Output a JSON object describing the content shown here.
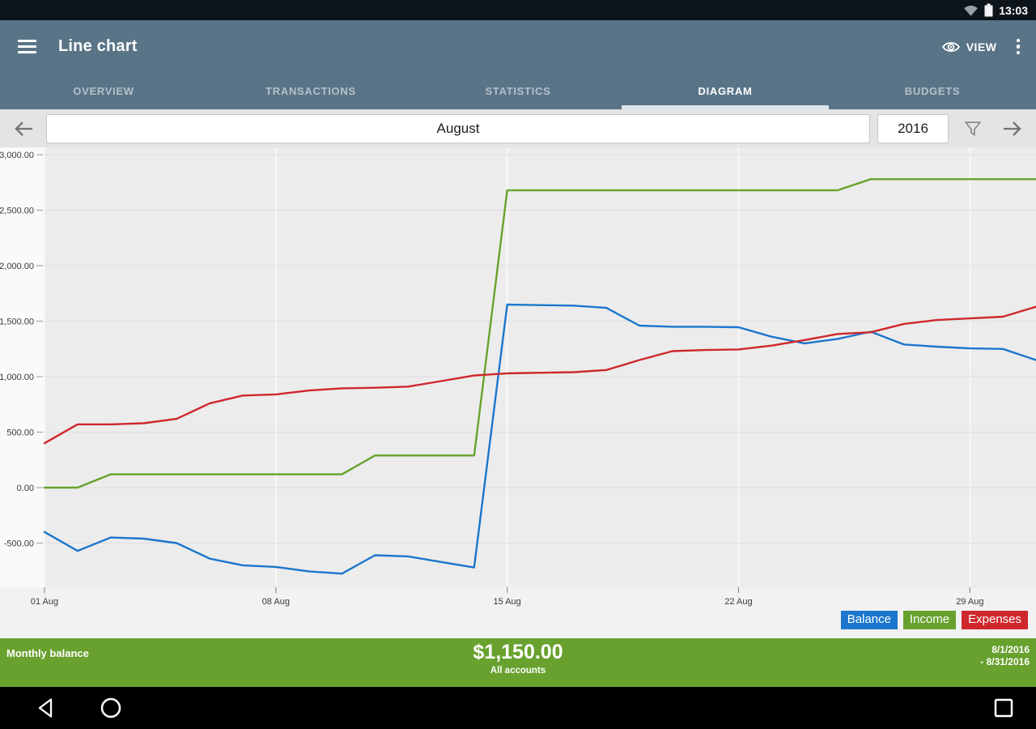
{
  "status_bar": {
    "time": "13:03"
  },
  "app_bar": {
    "title": "Line chart",
    "view_label": "VIEW"
  },
  "tabs": [
    {
      "label": "OVERVIEW",
      "active": false
    },
    {
      "label": "TRANSACTIONS",
      "active": false
    },
    {
      "label": "STATISTICS",
      "active": false
    },
    {
      "label": "DIAGRAM",
      "active": true
    },
    {
      "label": "BUDGETS",
      "active": false
    }
  ],
  "date_bar": {
    "month": "August",
    "year": "2016"
  },
  "chart_data": {
    "type": "line",
    "x_unit": "day of August 2016",
    "day_range": [
      1,
      31
    ],
    "x_ticks": {
      "days": [
        1,
        8,
        15,
        22,
        29
      ],
      "labels": [
        "01 Aug",
        "08 Aug",
        "15 Aug",
        "22 Aug",
        "29 Aug"
      ]
    },
    "y_ticks": {
      "values": [
        3000,
        2500,
        2000,
        1500,
        1000,
        500,
        0,
        -500
      ],
      "labels": [
        "3,000.00",
        "2,500.00",
        "2,000.00",
        "1,500.00",
        "1,000.00",
        "500.00",
        "0.00",
        "-500.00"
      ]
    },
    "ylim": [
      -898,
      3066
    ],
    "grid": true,
    "legend_position": "bottom-right",
    "series": [
      {
        "name": "Balance",
        "color": "#1b76cc",
        "values": [
          -400,
          -570,
          -450,
          -460,
          -500,
          -640,
          -700,
          -715,
          -755,
          -775,
          -610,
          -620,
          -670,
          -720,
          1650,
          1645,
          1640,
          1620,
          1460,
          1450,
          1450,
          1445,
          1360,
          1300,
          1340,
          1405,
          1290,
          1270,
          1255,
          1250,
          1150
        ]
      },
      {
        "name": "Income",
        "color": "#68a22e",
        "values": [
          0,
          0,
          120,
          120,
          120,
          120,
          120,
          120,
          120,
          120,
          290,
          290,
          290,
          290,
          2680,
          2680,
          2680,
          2680,
          2680,
          2680,
          2680,
          2680,
          2680,
          2680,
          2680,
          2780,
          2780,
          2780,
          2780,
          2780,
          2780
        ]
      },
      {
        "name": "Expenses",
        "color": "#cf272c",
        "values": [
          400,
          570,
          570,
          580,
          620,
          760,
          830,
          840,
          875,
          895,
          900,
          910,
          960,
          1010,
          1030,
          1035,
          1040,
          1060,
          1150,
          1230,
          1240,
          1245,
          1280,
          1330,
          1385,
          1400,
          1475,
          1510,
          1525,
          1540,
          1630
        ]
      }
    ]
  },
  "summary_bar": {
    "label": "Monthly balance",
    "amount": "$1,150.00",
    "accounts": "All accounts",
    "period_line1": "8/1/2016",
    "period_line2": "- 8/31/2016",
    "color": "#68a12e"
  }
}
